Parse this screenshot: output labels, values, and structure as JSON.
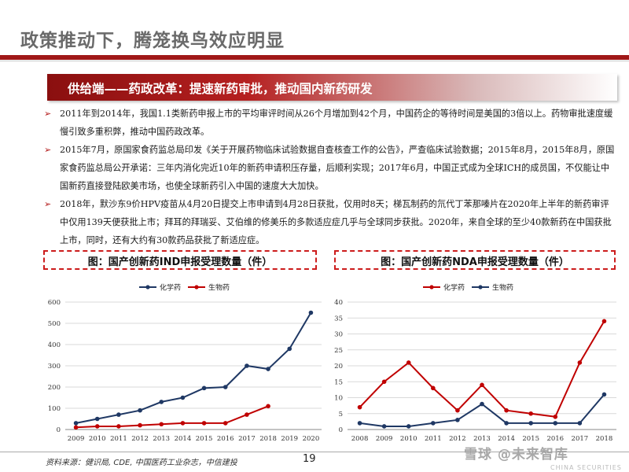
{
  "slide": {
    "title": "政策推动下，腾笼换鸟效应明显",
    "banner": "供给端——药政改革：提速新药审批，推动国内新药研发",
    "bullets": [
      "2011年到2014年，我国1.1类新药申报上市的平均审评时间从26个月增加到42个月，中国药企的等待时间是美国的3倍以上。药物审批速度缓慢引致多重积弊，推动中国药政改革。",
      "2015年7月，原国家食药监总局印发《关于开展药物临床试验数据自查核查工作的公告》，严查临床试验数据；2015年8月，2015年8月，原国家食药监总局公开承诺：三年内消化完近10年的新药申请积压存量，后顺利实现；2017年6月，中国正式成为全球ICH的成员国，不仅能让中国新药直接登陆欧美市场，也使全球新药引入中国的速度大大加快。",
      "2018年，默沙东9价HPV疫苗从4月20日提交上市申请到4月28日获批，仅用时8天；梯瓦制药的氘代丁苯那嗪片在2020年上半年的新药审评中仅用139天便获批上市；拜耳的拜瑞妥、艾伯维的修美乐的多款适应症几乎与全球同步获批。2020年，来自全球的至少40款新药在中国获批上市，同时，还有大约有30款药品获批了新适应症。"
    ],
    "source": "资料来源：健识局, CDE, 中国医药工业杂志，中信建投",
    "page_number": "19",
    "watermark": "雪球 @未来智库",
    "brand": "CHINA SECURITIES"
  },
  "charts": {
    "left_caption": "图：国产创新药IND申报受理数量（件）",
    "right_caption": "图：国产创新药NDA申报受理数量（件）"
  },
  "chart_data": [
    {
      "type": "line",
      "title": "图：国产创新药IND申报受理数量（件）",
      "x": [
        "2009",
        "2010",
        "2011",
        "2012",
        "2013",
        "2014",
        "2015",
        "2016",
        "2017",
        "2018",
        "2019",
        "2020"
      ],
      "ylim": [
        0,
        600
      ],
      "yticks": [
        0,
        100,
        200,
        300,
        400,
        500,
        600
      ],
      "legend_position": "top",
      "grid": true,
      "series": [
        {
          "name": "化学药",
          "color": "#1f3864",
          "values": [
            30,
            50,
            70,
            90,
            130,
            150,
            195,
            200,
            300,
            285,
            380,
            550
          ]
        },
        {
          "name": "生物药",
          "color": "#c00000",
          "values": [
            10,
            15,
            15,
            20,
            25,
            30,
            30,
            30,
            70,
            110,
            null,
            null
          ]
        }
      ]
    },
    {
      "type": "line",
      "title": "图：国产创新药NDA申报受理数量（件）",
      "x": [
        "2008",
        "2009",
        "2010",
        "2011",
        "2012",
        "2013",
        "2014",
        "2015",
        "2016",
        "2017",
        "2018"
      ],
      "ylim": [
        0,
        40
      ],
      "yticks": [
        0,
        5,
        10,
        15,
        20,
        25,
        30,
        35,
        40
      ],
      "legend_position": "top",
      "grid": true,
      "series": [
        {
          "name": "化学药",
          "color": "#c00000",
          "values": [
            7,
            15,
            21,
            13,
            6,
            14,
            6,
            5,
            4,
            21,
            34
          ]
        },
        {
          "name": "生物药",
          "color": "#1f3864",
          "values": [
            2,
            1,
            1,
            2,
            3,
            8,
            2,
            2,
            2,
            2,
            11
          ]
        }
      ]
    }
  ]
}
